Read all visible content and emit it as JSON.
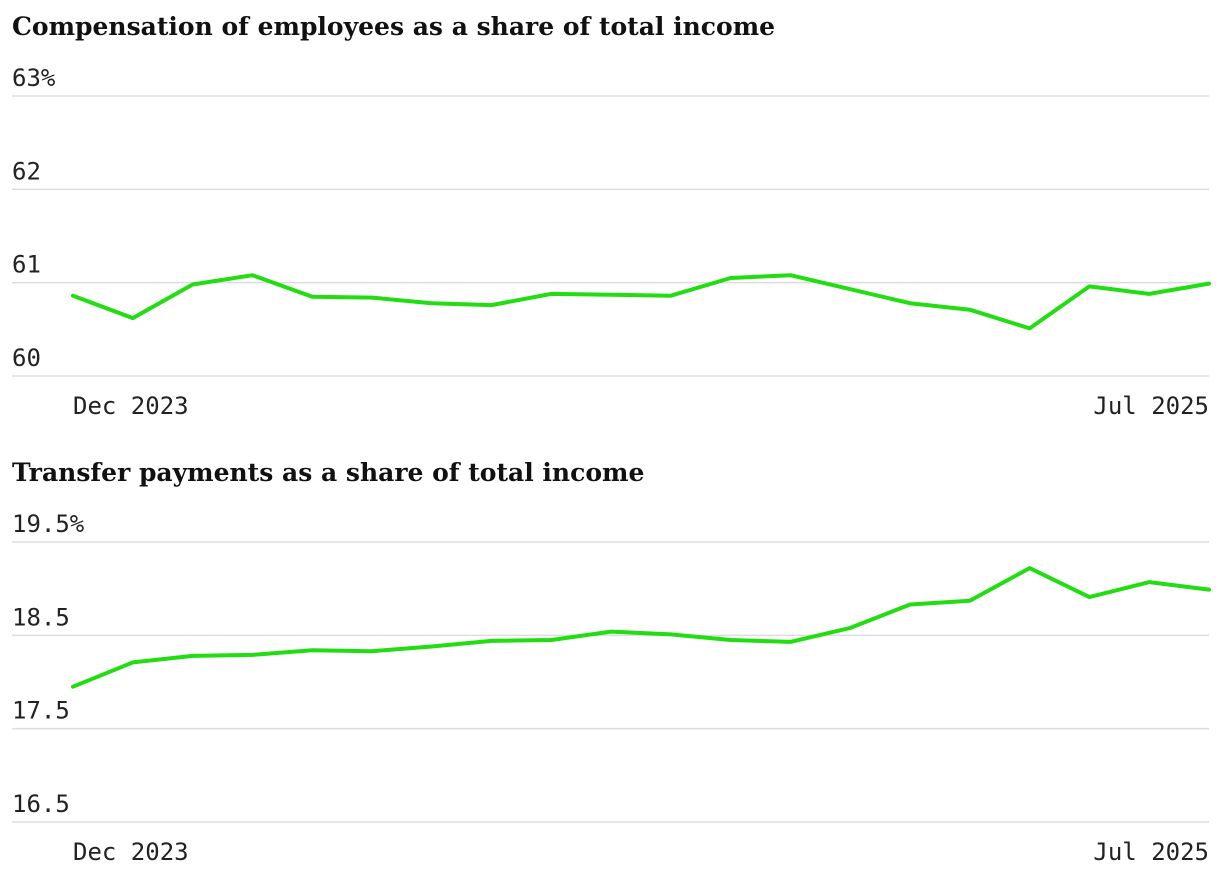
{
  "colors": {
    "series": "#22dd11",
    "grid": "#dddddd",
    "text": "#111111"
  },
  "chart_data": [
    {
      "type": "line",
      "title": "Compensation of employees as a share of total income",
      "ylim": [
        60,
        63
      ],
      "ytick_labels": [
        "60",
        "61",
        "62",
        "63%"
      ],
      "xtick_labels": [
        "Dec 2023",
        "Jul 2025"
      ],
      "x": [
        "Dec 2023",
        "Jan 2024",
        "Feb 2024",
        "Mar 2024",
        "Apr 2024",
        "May 2024",
        "Jun 2024",
        "Jul 2024",
        "Aug 2024",
        "Sep 2024",
        "Oct 2024",
        "Nov 2024",
        "Dec 2024",
        "Jan 2025",
        "Feb 2025",
        "Mar 2025",
        "Apr 2025",
        "May 2025",
        "Jun 2025",
        "Jul 2025"
      ],
      "values": [
        60.86,
        60.62,
        60.98,
        61.08,
        60.85,
        60.84,
        60.78,
        60.76,
        60.88,
        60.87,
        60.86,
        61.05,
        61.08,
        60.93,
        60.78,
        60.71,
        60.51,
        60.96,
        60.88,
        60.99
      ],
      "grid": true
    },
    {
      "type": "line",
      "title": "Transfer payments as a share of total income",
      "ylim": [
        16.5,
        19.5
      ],
      "ytick_labels": [
        "16.5",
        "17.5",
        "18.5",
        "19.5%"
      ],
      "xtick_labels": [
        "Dec 2023",
        "Jul 2025"
      ],
      "x": [
        "Dec 2023",
        "Jan 2024",
        "Feb 2024",
        "Mar 2024",
        "Apr 2024",
        "May 2024",
        "Jun 2024",
        "Jul 2024",
        "Aug 2024",
        "Sep 2024",
        "Oct 2024",
        "Nov 2024",
        "Dec 2024",
        "Jan 2025",
        "Feb 2025",
        "Mar 2025",
        "Apr 2025",
        "May 2025",
        "Jun 2025",
        "Jul 2025"
      ],
      "values": [
        17.95,
        18.21,
        18.28,
        18.29,
        18.34,
        18.33,
        18.38,
        18.44,
        18.45,
        18.54,
        18.51,
        18.45,
        18.43,
        18.58,
        18.83,
        18.87,
        19.22,
        18.91,
        19.07,
        18.99
      ],
      "grid": true
    }
  ]
}
